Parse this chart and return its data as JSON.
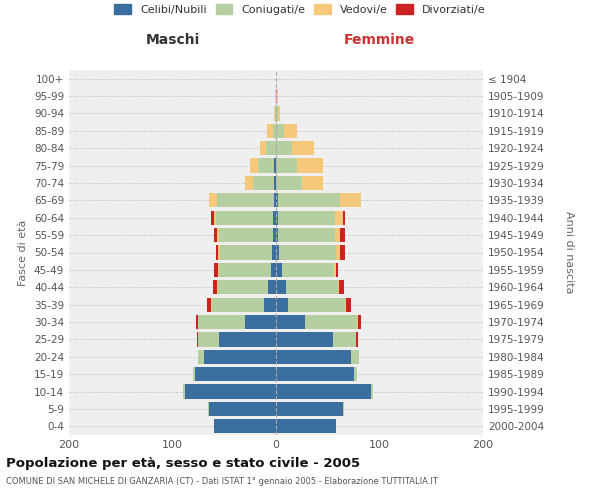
{
  "age_groups": [
    "0-4",
    "5-9",
    "10-14",
    "15-19",
    "20-24",
    "25-29",
    "30-34",
    "35-39",
    "40-44",
    "45-49",
    "50-54",
    "55-59",
    "60-64",
    "65-69",
    "70-74",
    "75-79",
    "80-84",
    "85-89",
    "90-94",
    "95-99",
    "100+"
  ],
  "birth_years": [
    "2000-2004",
    "1995-1999",
    "1990-1994",
    "1985-1989",
    "1980-1984",
    "1975-1979",
    "1970-1974",
    "1965-1969",
    "1960-1964",
    "1955-1959",
    "1950-1954",
    "1945-1949",
    "1940-1944",
    "1935-1939",
    "1930-1934",
    "1925-1929",
    "1920-1924",
    "1915-1919",
    "1910-1914",
    "1905-1909",
    "≤ 1904"
  ],
  "colors": {
    "celibi": "#3a6e9f",
    "coniugati": "#b5cfa0",
    "vedovi": "#f5c87a",
    "divorziati": "#cc2222"
  },
  "maschi": {
    "celibi": [
      60,
      65,
      88,
      78,
      70,
      55,
      30,
      12,
      8,
      5,
      4,
      3,
      3,
      2,
      2,
      2,
      0,
      0,
      0,
      0,
      0
    ],
    "coniugati": [
      0,
      1,
      2,
      2,
      5,
      20,
      45,
      50,
      48,
      50,
      50,
      52,
      55,
      55,
      20,
      15,
      10,
      3,
      1,
      0,
      0
    ],
    "vedovi": [
      0,
      0,
      0,
      0,
      0,
      0,
      0,
      1,
      1,
      1,
      2,
      2,
      2,
      8,
      8,
      8,
      5,
      6,
      1,
      1,
      0
    ],
    "divorziati": [
      0,
      0,
      0,
      0,
      0,
      1,
      2,
      4,
      4,
      4,
      2,
      3,
      3,
      0,
      0,
      0,
      0,
      0,
      0,
      0,
      0
    ]
  },
  "femmine": {
    "celibi": [
      58,
      65,
      92,
      75,
      72,
      55,
      28,
      12,
      10,
      6,
      3,
      2,
      2,
      2,
      0,
      0,
      0,
      0,
      0,
      0,
      0
    ],
    "coniugati": [
      0,
      1,
      2,
      3,
      8,
      22,
      50,
      55,
      50,
      50,
      55,
      55,
      55,
      60,
      25,
      20,
      15,
      8,
      2,
      0,
      0
    ],
    "vedovi": [
      0,
      0,
      0,
      0,
      0,
      0,
      1,
      1,
      1,
      2,
      4,
      5,
      8,
      20,
      20,
      25,
      22,
      12,
      2,
      2,
      0
    ],
    "divorziati": [
      0,
      0,
      0,
      0,
      0,
      2,
      3,
      4,
      5,
      2,
      5,
      5,
      2,
      0,
      0,
      0,
      0,
      0,
      0,
      0,
      0
    ]
  },
  "xlim": 200,
  "title": "Popolazione per età, sesso e stato civile - 2005",
  "subtitle": "COMUNE DI SAN MICHELE DI GANZARIA (CT) - Dati ISTAT 1° gennaio 2005 - Elaborazione TUTTITALIA.IT",
  "xlabel_left": "Maschi",
  "xlabel_right": "Femmine",
  "ylabel_left": "Fasce di età",
  "ylabel_right": "Anni di nascita",
  "bg_color": "#efefef",
  "grid_color": "#cccccc",
  "bar_height": 0.82
}
